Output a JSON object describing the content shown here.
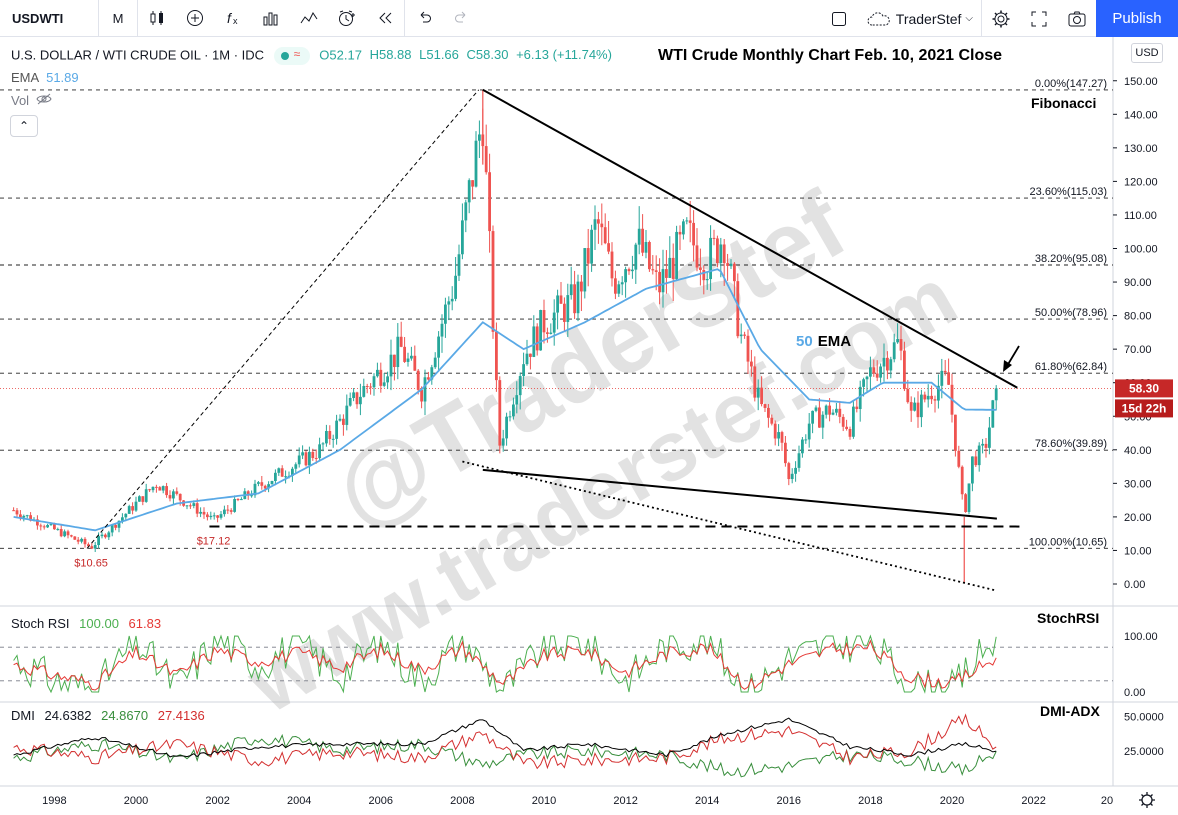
{
  "toolbar": {
    "symbol": "USDWTI",
    "interval": "M",
    "trader_name": "TraderStef",
    "publish_label": "Publish"
  },
  "legend": {
    "symbol_line": "U.S. DOLLAR / WTI CRUDE OIL · 1M · IDC",
    "open": "O52.17",
    "high": "H58.88",
    "low": "L51.66",
    "close": "C58.30",
    "change": "+6.13 (+11.74%)",
    "ema_label": "EMA",
    "ema_value": "51.89",
    "vol_label": "Vol"
  },
  "colors": {
    "up": "#26a69a",
    "down": "#ef5350",
    "ema": "#5aa9e6",
    "stoch_k": "#4caf50",
    "stoch_d": "#e53935",
    "dmi_adx": "#000000",
    "accent": "#2962ff"
  },
  "chart_data": [
    {
      "type": "candlestick",
      "title": "WTI Crude Monthly Chart Feb. 10, 2021 Close",
      "ylim": [
        -5,
        155
      ],
      "y_ticks": [
        "0.00",
        "10.00",
        "20.00",
        "30.00",
        "40.00",
        "50.00",
        "60.00",
        "70.00",
        "80.00",
        "90.00",
        "100.00",
        "110.00",
        "120.00",
        "130.00",
        "140.00",
        "150.00"
      ],
      "x_ticks": [
        "1998",
        "2000",
        "2002",
        "2004",
        "2006",
        "2008",
        "2010",
        "2012",
        "2014",
        "2016",
        "2018",
        "2020",
        "2022",
        "20"
      ],
      "currency": "USD",
      "last_price": "58.30",
      "countdown": "15d 22h",
      "ema_annotation_num": "50",
      "ema_annotation_text": "EMA",
      "fibonacci_label": "Fibonacci",
      "fibonacci_levels": [
        {
          "value": 147.27,
          "label": "0.00%(147.27)"
        },
        {
          "value": 115.03,
          "label": "23.60%(115.03)"
        },
        {
          "value": 95.08,
          "label": "38.20%(95.08)"
        },
        {
          "value": 78.96,
          "label": "50.00%(78.96)"
        },
        {
          "value": 62.84,
          "label": "61.80%(62.84)"
        },
        {
          "value": 39.89,
          "label": "78.60%(39.89)"
        },
        {
          "value": 10.65,
          "label": "100.00%(10.65)"
        }
      ],
      "price_annotations": [
        {
          "x": 1998.9,
          "y": 10.65,
          "label": "$10.65"
        },
        {
          "x": 2001.9,
          "y": 17.12,
          "label": "$17.12"
        }
      ],
      "trendlines": [
        {
          "name": "upper-resistance",
          "from": [
            2008.5,
            147.3
          ],
          "to": [
            2021.6,
            58.5
          ],
          "style": "solid"
        },
        {
          "name": "lower-support",
          "from": [
            2008.5,
            34.0
          ],
          "to": [
            2021.1,
            19.5
          ],
          "style": "solid"
        },
        {
          "name": "lower-dotted",
          "from": [
            2008.0,
            36.5
          ],
          "to": [
            2021.1,
            -2.0
          ],
          "style": "dotted"
        },
        {
          "name": "rise-dashed",
          "from": [
            1998.8,
            10.6
          ],
          "to": [
            2008.4,
            147.3
          ],
          "style": "dashed"
        },
        {
          "name": "support-17",
          "from": [
            2001.8,
            17.12
          ],
          "to": [
            2021.8,
            17.12
          ],
          "style": "thick-dashed"
        }
      ],
      "key_points": {
        "x": [
          1997.0,
          1998.9,
          1999.5,
          2000.5,
          2001.9,
          2003.0,
          2004.5,
          2005.5,
          2006.5,
          2007.0,
          2007.8,
          2008.5,
          2008.9,
          2009.5,
          2010.0,
          2010.8,
          2011.3,
          2011.7,
          2012.3,
          2012.8,
          2013.5,
          2014.0,
          2014.4,
          2014.8,
          2015.3,
          2015.8,
          2016.0,
          2016.5,
          2017.0,
          2017.5,
          2018.0,
          2018.7,
          2019.0,
          2019.5,
          2019.9,
          2020.3,
          2020.5,
          2020.8,
          2021.1
        ],
        "y": [
          22,
          11,
          18,
          30,
          19,
          29,
          40,
          57,
          70,
          58,
          90,
          140,
          41,
          68,
          78,
          85,
          108,
          90,
          102,
          88,
          104,
          96,
          104,
          75,
          53,
          43,
          31,
          48,
          52,
          47,
          63,
          72,
          50,
          58,
          61,
          20,
          37,
          40,
          58.3
        ]
      },
      "ema_series": {
        "x": [
          1997,
          1999,
          2001,
          2003,
          2005,
          2007,
          2008.5,
          2009.5,
          2011,
          2012.5,
          2014.3,
          2015.3,
          2016.5,
          2017.5,
          2018.3,
          2019.5,
          2020.3,
          2021.1
        ],
        "y": [
          20,
          16,
          24,
          27,
          40,
          58,
          78,
          70,
          78,
          88,
          94,
          70,
          55,
          54,
          60,
          60,
          52,
          51.9
        ]
      }
    },
    {
      "type": "line",
      "name": "Stoch RSI",
      "label": "StochRSI",
      "k_value": "100.00",
      "d_value": "61.83",
      "y_ticks": [
        "0.00",
        "100.00"
      ],
      "ylim": [
        0,
        100
      ],
      "bands": [
        20,
        80
      ],
      "series": [
        {
          "name": "K",
          "x": [
            1997,
            1998,
            1999,
            2000,
            2001,
            2002,
            2003,
            2004,
            2005,
            2006,
            2007,
            2008,
            2009,
            2010,
            2011,
            2012,
            2013,
            2014,
            2015,
            2016,
            2017,
            2018,
            2019,
            2020,
            2021.1
          ],
          "y": [
            60,
            20,
            5,
            90,
            10,
            95,
            50,
            85,
            30,
            90,
            20,
            95,
            5,
            80,
            90,
            20,
            85,
            95,
            0,
            60,
            85,
            90,
            10,
            5,
            100
          ]
        },
        {
          "name": "D",
          "x": [
            1997,
            1998,
            1999,
            2000,
            2001,
            2002,
            2003,
            2004,
            2005,
            2006,
            2007,
            2008,
            2009,
            2010,
            2011,
            2012,
            2013,
            2014,
            2015,
            2016,
            2017,
            2018,
            2019,
            2020,
            2021.1
          ],
          "y": [
            50,
            30,
            15,
            70,
            30,
            75,
            55,
            70,
            45,
            75,
            40,
            80,
            15,
            65,
            75,
            35,
            70,
            80,
            10,
            50,
            75,
            80,
            25,
            15,
            61.83
          ]
        }
      ]
    },
    {
      "type": "line",
      "name": "DMI",
      "label": "DMI-ADX",
      "values": [
        "24.6382",
        "24.8670",
        "27.4136"
      ],
      "y_ticks": [
        "25.0000",
        "50.0000"
      ],
      "ylim": [
        0,
        60
      ],
      "series": [
        {
          "name": "ADX",
          "x": [
            1997,
            1999,
            2001,
            2003,
            2005,
            2007,
            2008.5,
            2009.5,
            2011,
            2013,
            2014.5,
            2016,
            2017.5,
            2019,
            2020.3,
            2021.1
          ],
          "y": [
            22,
            35,
            20,
            28,
            30,
            30,
            48,
            25,
            30,
            22,
            38,
            48,
            28,
            22,
            30,
            24.64
          ]
        },
        {
          "name": "+DI",
          "x": [
            1997,
            1999,
            2001,
            2003,
            2005,
            2007,
            2008.5,
            2009.5,
            2011,
            2013,
            2014.5,
            2016,
            2017.5,
            2019,
            2020.3,
            2021.1
          ],
          "y": [
            20,
            30,
            18,
            35,
            26,
            30,
            15,
            22,
            25,
            22,
            10,
            14,
            22,
            18,
            10,
            24.87
          ]
        },
        {
          "name": "-DI",
          "x": [
            1997,
            1999,
            2001,
            2003,
            2005,
            2007,
            2008.5,
            2009.5,
            2011,
            2013,
            2014.5,
            2016,
            2017.5,
            2019,
            2020.3,
            2021.1
          ],
          "y": [
            28,
            20,
            30,
            18,
            24,
            20,
            38,
            15,
            18,
            20,
            35,
            40,
            20,
            25,
            48,
            27.41
          ]
        }
      ]
    }
  ],
  "watermark": {
    "line1": "@TraderStef",
    "line2": "www.traderstef.com"
  }
}
